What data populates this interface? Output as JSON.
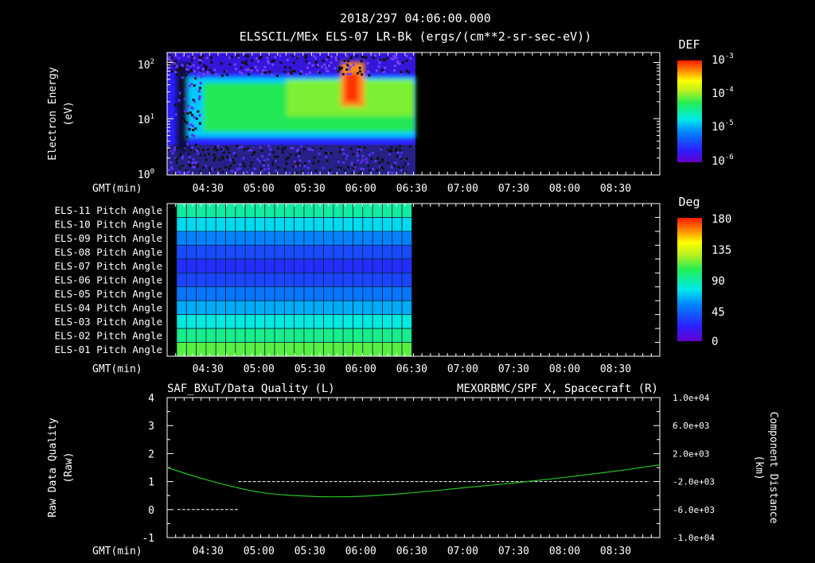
{
  "header": {
    "timestamp": "2018/297 04:06:00.000",
    "title": "ELSSCIL/MEx ELS-07 LR-Bk  (ergs/(cm**2-sr-sec-eV))"
  },
  "time_axis": {
    "label": "GMT(min)",
    "ticks": [
      "04:30",
      "05:00",
      "05:30",
      "06:00",
      "06:30",
      "07:00",
      "07:30",
      "08:00",
      "08:30"
    ],
    "start": "04:06",
    "end": "08:56",
    "data_end": "06:30"
  },
  "colors": {
    "background": "#000000",
    "axes": "#ffffff",
    "orbit_line": "#22c322",
    "quality_line": "#ffffff",
    "right_title": "#22dd22"
  },
  "chart_data": [
    {
      "type": "heatmap",
      "name": "electron-spectrogram",
      "ylabel": "Electron Energy",
      "ylabel_unit": "(eV)",
      "yscale": "log",
      "ylim": [
        1,
        150
      ],
      "ytick_labels": [
        {
          "base": "10",
          "exp": "0"
        },
        {
          "base": "10",
          "exp": "1"
        },
        {
          "base": "10",
          "exp": "2"
        }
      ],
      "colorbar": {
        "title": "DEF",
        "scale": "log",
        "range": [
          1e-06,
          0.001
        ],
        "tick_labels": [
          {
            "base": "10",
            "exp": "-3"
          },
          {
            "base": "10",
            "exp": "-4"
          },
          {
            "base": "10",
            "exp": "-5"
          },
          {
            "base": "10",
            "exp": "-6"
          }
        ]
      },
      "features": [
        {
          "note": "dense flux band",
          "energy_range_eV": [
            6,
            40
          ],
          "time_range": [
            "04:12",
            "06:30"
          ]
        },
        {
          "note": "peak flux",
          "energy_range_eV": [
            25,
            90
          ],
          "time_range": [
            "05:50",
            "06:05"
          ]
        }
      ]
    },
    {
      "type": "heatmap",
      "name": "pitch-angle",
      "rows": [
        "ELS-11 Pitch Angle",
        "ELS-10 Pitch Angle",
        "ELS-09 Pitch Angle",
        "ELS-08 Pitch Angle",
        "ELS-07 Pitch Angle",
        "ELS-06 Pitch Angle",
        "ELS-05 Pitch Angle",
        "ELS-04 Pitch Angle",
        "ELS-03 Pitch Angle",
        "ELS-02 Pitch Angle",
        "ELS-01 Pitch Angle"
      ],
      "row_values_deg": [
        90,
        72,
        52,
        35,
        26,
        33,
        48,
        62,
        78,
        94,
        112
      ],
      "colorbar": {
        "title": "Deg",
        "range": [
          0,
          180
        ],
        "tick_labels": [
          "180",
          "135",
          "90",
          "45",
          "0"
        ]
      }
    },
    {
      "type": "line",
      "name": "quality-and-position",
      "title_left": "SAF_BXuT/Data Quality (L)",
      "title_right": "MEXORBMC/SPF X, Spacecraft (R)",
      "ylabel_left": "Raw Data Quality",
      "ylabel_left_unit": "(Raw)",
      "ylim_left": [
        -1,
        4
      ],
      "ytick_labels_left": [
        "4",
        "3",
        "2",
        "1",
        "0",
        "-1"
      ],
      "ylabel_right": "Component Distance",
      "ylabel_right_unit": "(km)",
      "ylim_right": [
        -10000,
        10000
      ],
      "ytick_labels_right": [
        "1.0e+04",
        "6.0e+03",
        "2.0e+03",
        "-2.0e+03",
        "-6.0e+03",
        "-1.0e+04"
      ],
      "series": [
        {
          "name": "Data Quality",
          "axis": "left",
          "style": "dashed",
          "color": "#ffffff",
          "points": [
            [
              "04:12",
              0
            ],
            [
              "04:48",
              0
            ],
            [
              "04:48",
              1
            ],
            [
              "08:50",
              1
            ]
          ]
        },
        {
          "name": "SPF X, Spacecraft",
          "axis": "right",
          "style": "solid",
          "color": "#22c322",
          "points": [
            [
              "04:06",
              0
            ],
            [
              "04:30",
              -1800
            ],
            [
              "05:00",
              -3500
            ],
            [
              "05:30",
              -4100
            ],
            [
              "06:00",
              -4100
            ],
            [
              "06:30",
              -3600
            ],
            [
              "07:00",
              -2900
            ],
            [
              "07:30",
              -2200
            ],
            [
              "08:00",
              -1400
            ],
            [
              "08:30",
              -500
            ],
            [
              "08:56",
              400
            ]
          ]
        }
      ]
    }
  ]
}
